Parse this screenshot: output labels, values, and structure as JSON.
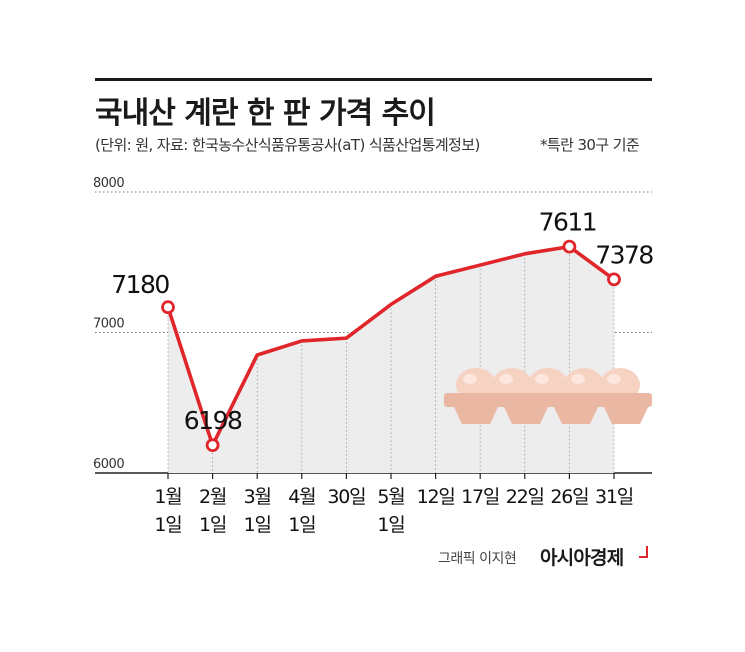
{
  "header": {
    "title": "국내산 계란 한 판 가격 추이",
    "subtitle": "(단위: 원, 자료: 한국농수산식품유통공사(aT) 식품산업통계정보)",
    "note": "*특란 30구 기준"
  },
  "footer": {
    "credit": "그래픽 이지현",
    "brand": "아시아경제"
  },
  "chart_data": {
    "type": "line",
    "categories": [
      [
        "1월",
        "1일"
      ],
      [
        "2월",
        "1일"
      ],
      [
        "3월",
        "1일"
      ],
      [
        "4월",
        "1일"
      ],
      [
        "30일"
      ],
      [
        "5월",
        "1일"
      ],
      [
        "12일"
      ],
      [
        "17일"
      ],
      [
        "22일"
      ],
      [
        "26일"
      ],
      [
        "31일"
      ]
    ],
    "values": [
      7180,
      6198,
      6840,
      6940,
      6960,
      7200,
      7400,
      7480,
      7560,
      7611,
      7378
    ],
    "labeled_points": [
      0,
      1,
      9,
      10
    ],
    "ylim": [
      6000,
      8000
    ],
    "yticks": [
      6000,
      7000,
      8000
    ],
    "line_color": "#e0262a",
    "area_color": "#ededed",
    "grid": "dotted"
  }
}
